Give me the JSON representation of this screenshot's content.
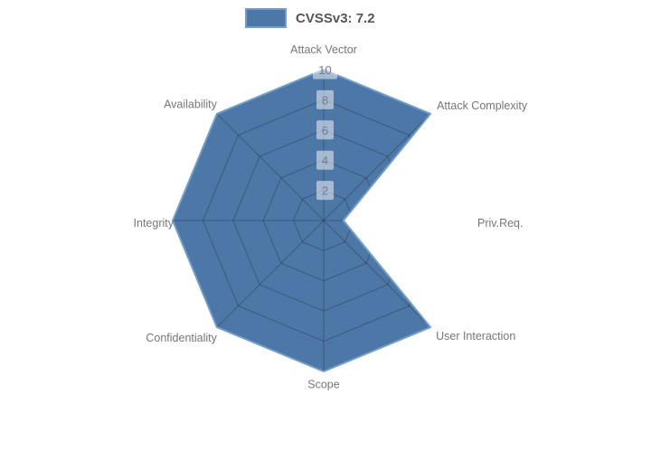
{
  "legend": {
    "label": "CVSSv3: 7.2"
  },
  "colors": {
    "series_fill": "#4d77a6",
    "series_border": "#739dc9",
    "grid_line": "rgba(0,0,0,0.24)",
    "axis_label": "#75777c",
    "tick_label": "#737c88",
    "tick_box_bg": "rgba(255,255,255,0.5)",
    "legend_text": "#53565e"
  },
  "chart_data": {
    "type": "radar",
    "legend": "CVSSv3: 7.2",
    "legend_position": "top-center",
    "axes": [
      "Attack Vector",
      "Attack Complexity",
      "Priv.Req.",
      "User Interaction",
      "Scope",
      "Confidentiality",
      "Integrity",
      "Availability"
    ],
    "series": [
      {
        "name": "CVSSv3: 7.2",
        "values": [
          10,
          10,
          1.3,
          10,
          10,
          10,
          10,
          10
        ]
      }
    ],
    "ticks": [
      2,
      4,
      6,
      8,
      10
    ],
    "rmax": 10,
    "grid": "spider-web rings and spokes, visible only within filled polygon",
    "background": "white"
  }
}
